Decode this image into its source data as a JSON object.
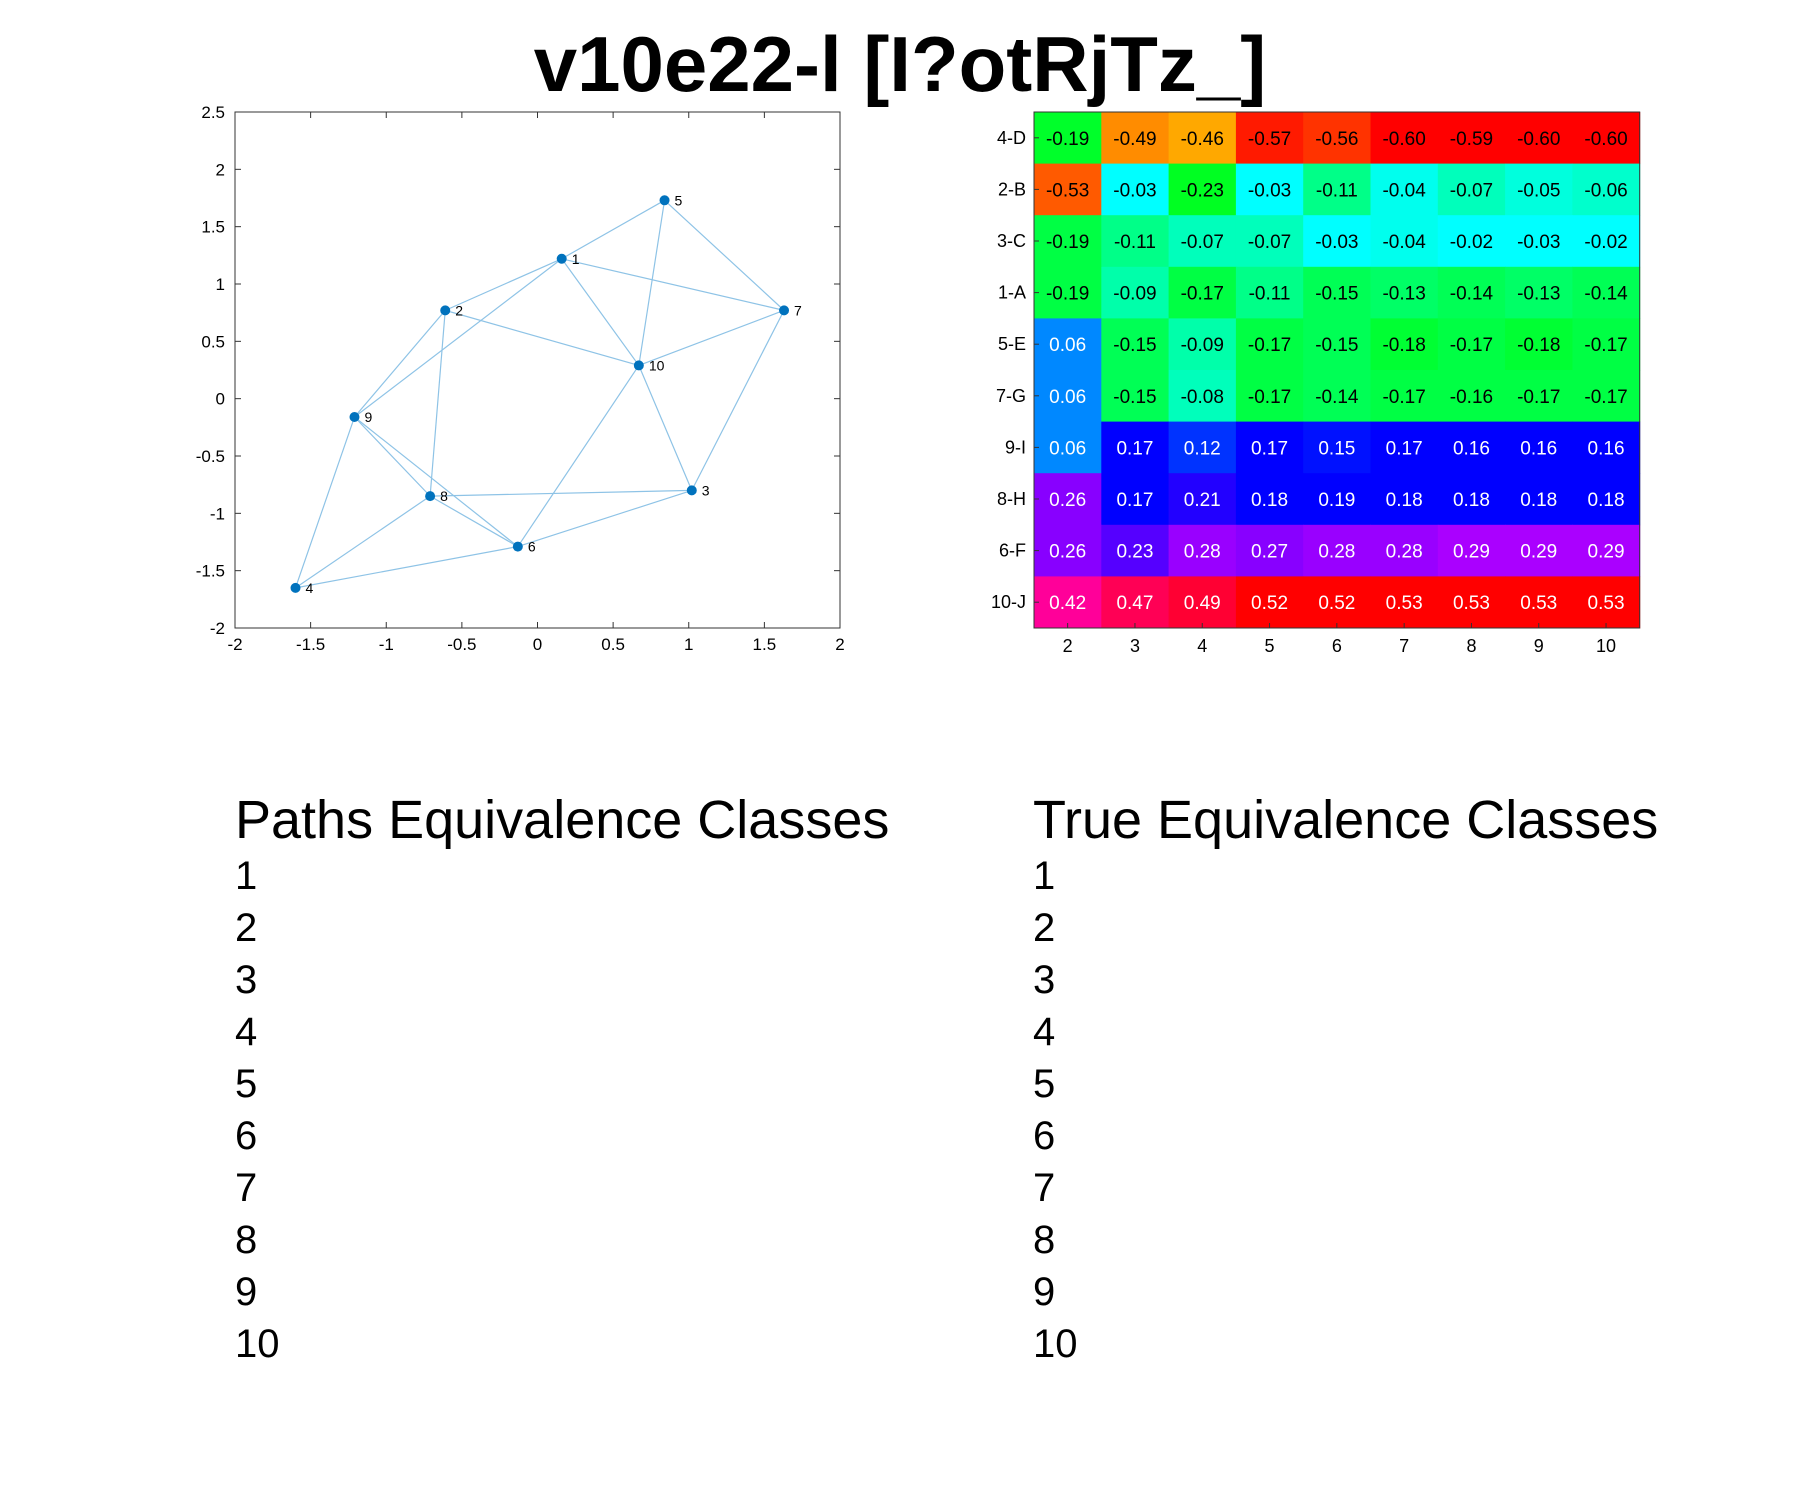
{
  "title": "v10e22-l [I?otRjTz_]",
  "chart_data": [
    {
      "type": "scatter",
      "subtype": "network-graph",
      "xlim": [
        -2,
        2
      ],
      "ylim": [
        -2,
        2.5
      ],
      "xticks": [
        "-2",
        "-1.5",
        "-1",
        "-0.5",
        "0",
        "0.5",
        "1",
        "1.5",
        "2"
      ],
      "yticks": [
        "-2",
        "-1.5",
        "-1",
        "-0.5",
        "0",
        "0.5",
        "1",
        "1.5",
        "2",
        "2.5"
      ],
      "nodes": [
        {
          "label": "1",
          "x": 0.16,
          "y": 1.22
        },
        {
          "label": "2",
          "x": -0.61,
          "y": 0.77
        },
        {
          "label": "3",
          "x": 1.02,
          "y": -0.8
        },
        {
          "label": "4",
          "x": -1.6,
          "y": -1.65
        },
        {
          "label": "5",
          "x": 0.84,
          "y": 1.73
        },
        {
          "label": "6",
          "x": -0.13,
          "y": -1.29
        },
        {
          "label": "7",
          "x": 1.63,
          "y": 0.77
        },
        {
          "label": "8",
          "x": -0.71,
          "y": -0.85
        },
        {
          "label": "9",
          "x": -1.21,
          "y": -0.16
        },
        {
          "label": "10",
          "x": 0.67,
          "y": 0.29
        }
      ],
      "edges": [
        [
          1,
          2
        ],
        [
          1,
          5
        ],
        [
          1,
          7
        ],
        [
          1,
          9
        ],
        [
          1,
          10
        ],
        [
          2,
          8
        ],
        [
          2,
          9
        ],
        [
          2,
          10
        ],
        [
          3,
          6
        ],
        [
          3,
          7
        ],
        [
          3,
          8
        ],
        [
          3,
          10
        ],
        [
          4,
          6
        ],
        [
          4,
          8
        ],
        [
          4,
          9
        ],
        [
          5,
          7
        ],
        [
          5,
          10
        ],
        [
          6,
          8
        ],
        [
          6,
          9
        ],
        [
          6,
          10
        ],
        [
          7,
          10
        ],
        [
          8,
          9
        ]
      ],
      "colors": {
        "node": "#0072BD",
        "edge": "#8ec3e6"
      }
    },
    {
      "type": "heatmap",
      "rows": [
        "4-D",
        "2-B",
        "3-C",
        "1-A",
        "5-E",
        "7-G",
        "9-I",
        "8-H",
        "6-F",
        "10-J"
      ],
      "columns": [
        "2",
        "3",
        "4",
        "5",
        "6",
        "7",
        "8",
        "9",
        "10"
      ],
      "values": [
        [
          "-0.19",
          "-0.49",
          "-0.46",
          "-0.57",
          "-0.56",
          "-0.60",
          "-0.59",
          "-0.60",
          "-0.60"
        ],
        [
          "-0.53",
          "-0.03",
          "-0.23",
          "-0.03",
          "-0.11",
          "-0.04",
          "-0.07",
          "-0.05",
          "-0.06"
        ],
        [
          "-0.19",
          "-0.11",
          "-0.07",
          "-0.07",
          "-0.03",
          "-0.04",
          "-0.02",
          "-0.03",
          "-0.02"
        ],
        [
          "-0.19",
          "-0.09",
          "-0.17",
          "-0.11",
          "-0.15",
          "-0.13",
          "-0.14",
          "-0.13",
          "-0.14"
        ],
        [
          "0.06",
          "-0.15",
          "-0.09",
          "-0.17",
          "-0.15",
          "-0.18",
          "-0.17",
          "-0.18",
          "-0.17"
        ],
        [
          "0.06",
          "-0.15",
          "-0.08",
          "-0.17",
          "-0.14",
          "-0.17",
          "-0.16",
          "-0.17",
          "-0.17"
        ],
        [
          "0.06",
          "0.17",
          "0.12",
          "0.17",
          "0.15",
          "0.17",
          "0.16",
          "0.16",
          "0.16"
        ],
        [
          "0.26",
          "0.17",
          "0.21",
          "0.18",
          "0.19",
          "0.18",
          "0.18",
          "0.18",
          "0.18"
        ],
        [
          "0.26",
          "0.23",
          "0.28",
          "0.27",
          "0.28",
          "0.28",
          "0.29",
          "0.29",
          "0.29"
        ],
        [
          "0.42",
          "0.47",
          "0.49",
          "0.52",
          "0.52",
          "0.53",
          "0.53",
          "0.53",
          "0.53"
        ]
      ],
      "cell_colors": [
        [
          "#00ff2a",
          "#ff8c00",
          "#ffa800",
          "#ff1a00",
          "#ff3300",
          "#ff0000",
          "#ff0000",
          "#ff0000",
          "#ff0000"
        ],
        [
          "#ff5a00",
          "#00ffff",
          "#00ff22",
          "#00ffff",
          "#00ff88",
          "#00ffee",
          "#00ffbb",
          "#00ffdd",
          "#00ffcc"
        ],
        [
          "#00ff44",
          "#00ff88",
          "#00ffbb",
          "#00ffbb",
          "#00ffff",
          "#00ffee",
          "#00ffff",
          "#00ffff",
          "#00ffff"
        ],
        [
          "#00ff44",
          "#00ffaa",
          "#00ff44",
          "#00ff88",
          "#00ff55",
          "#00ff66",
          "#00ff55",
          "#00ff66",
          "#00ff55"
        ],
        [
          "#0088ff",
          "#00ff55",
          "#00ffaa",
          "#00ff44",
          "#00ff55",
          "#00ff33",
          "#00ff44",
          "#00ff33",
          "#00ff44"
        ],
        [
          "#0088ff",
          "#00ff55",
          "#00ffbb",
          "#00ff44",
          "#00ff55",
          "#00ff44",
          "#00ff44",
          "#00ff44",
          "#00ff44"
        ],
        [
          "#0088ff",
          "#0000ff",
          "#0033ff",
          "#0000ff",
          "#0011ff",
          "#0000ff",
          "#0000ff",
          "#0000ff",
          "#0000ff"
        ],
        [
          "#8800ff",
          "#0000ff",
          "#2200ff",
          "#0000ff",
          "#0000ff",
          "#0000ff",
          "#0000ff",
          "#0000ff",
          "#0000ff"
        ],
        [
          "#8800ff",
          "#5500ff",
          "#9900ff",
          "#8800ff",
          "#9900ff",
          "#9900ff",
          "#aa00ff",
          "#aa00ff",
          "#aa00ff"
        ],
        [
          "#ff0099",
          "#ff0055",
          "#ff0033",
          "#ff0000",
          "#ff0000",
          "#ff0000",
          "#ff0000",
          "#ff0000",
          "#ff0000"
        ]
      ]
    }
  ],
  "paths_classes": {
    "heading": "Paths Equivalence Classes",
    "items": [
      "1",
      "2",
      "3",
      "4",
      "5",
      "6",
      "7",
      "8",
      "9",
      "10"
    ]
  },
  "true_classes": {
    "heading": "True Equivalence Classes",
    "items": [
      "1",
      "2",
      "3",
      "4",
      "5",
      "6",
      "7",
      "8",
      "9",
      "10"
    ]
  }
}
